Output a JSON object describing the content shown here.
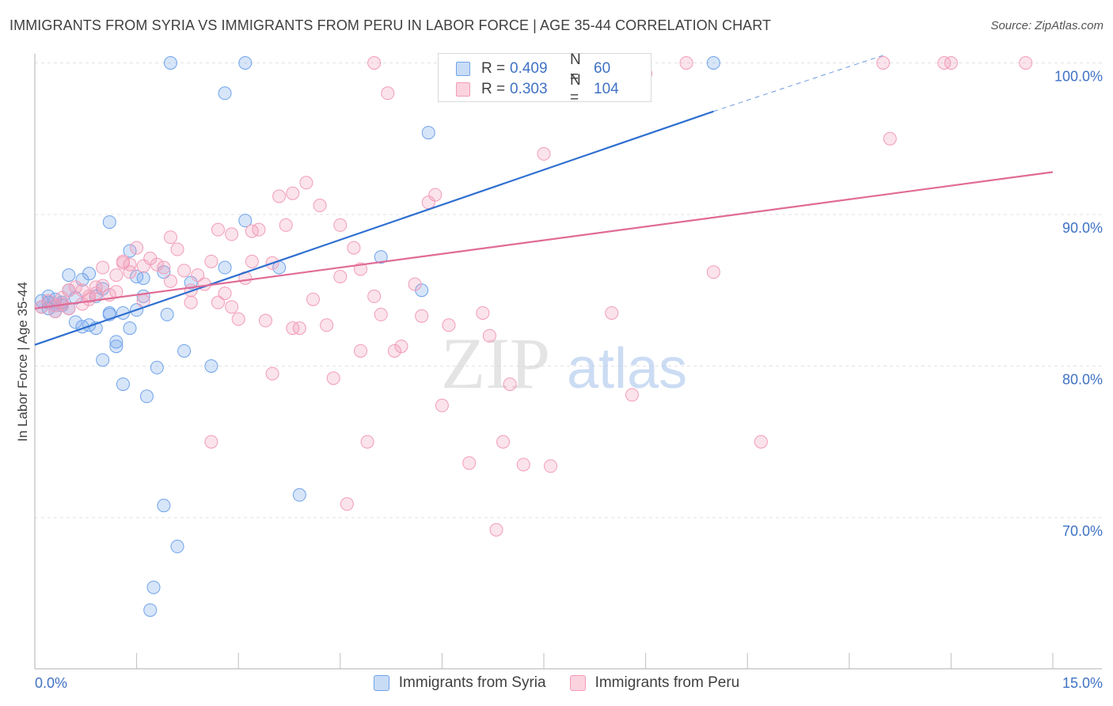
{
  "header": {
    "title": "IMMIGRANTS FROM SYRIA VS IMMIGRANTS FROM PERU IN LABOR FORCE | AGE 35-44 CORRELATION CHART",
    "source": "Source: ZipAtlas.com"
  },
  "watermark": {
    "part1": "ZIP",
    "part2": "atlas"
  },
  "legend": {
    "r_label": "R =",
    "n_label": "N =",
    "rows": [
      {
        "r": "0.409",
        "n": "60",
        "color": "#6fa3ea"
      },
      {
        "r": "0.303",
        "n": "104",
        "color": "#f29cb7"
      }
    ]
  },
  "chart_data": {
    "type": "scatter",
    "title": "IMMIGRANTS FROM SYRIA VS IMMIGRANTS FROM PERU IN LABOR FORCE | AGE 35-44 CORRELATION CHART",
    "xlabel": "",
    "ylabel": "In Labor Force | Age 35-44",
    "x_tick_labels": [
      "0.0%",
      "15.0%"
    ],
    "y_tick_labels": [
      "70.0%",
      "80.0%",
      "90.0%",
      "100.0%"
    ],
    "y_ticks": [
      70,
      80,
      90,
      100
    ],
    "xlim": [
      0,
      15
    ],
    "ylim": [
      60,
      101
    ],
    "grid": true,
    "legend_placement": "top-center",
    "series": [
      {
        "name": "Immigrants from Syria",
        "color": "#6fa3ea",
        "trend": {
          "x": [
            0,
            10
          ],
          "y": [
            81.4,
            96.8
          ],
          "dashed_to": [
            12.5,
            100.5
          ]
        },
        "points": [
          [
            0.1,
            84.3
          ],
          [
            0.1,
            83.9
          ],
          [
            0.2,
            84.6
          ],
          [
            0.2,
            84.2
          ],
          [
            0.3,
            83.6
          ],
          [
            0.3,
            84.0
          ],
          [
            0.4,
            84.2
          ],
          [
            0.4,
            84.0
          ],
          [
            0.5,
            86.0
          ],
          [
            0.5,
            85.0
          ],
          [
            0.5,
            83.8
          ],
          [
            0.6,
            82.9
          ],
          [
            0.6,
            84.5
          ],
          [
            0.7,
            85.7
          ],
          [
            0.7,
            82.6
          ],
          [
            0.8,
            86.1
          ],
          [
            0.8,
            82.7
          ],
          [
            0.9,
            84.6
          ],
          [
            0.9,
            82.5
          ],
          [
            1.0,
            85.1
          ],
          [
            1.0,
            80.4
          ],
          [
            1.1,
            83.4
          ],
          [
            1.1,
            83.5
          ],
          [
            1.2,
            81.3
          ],
          [
            1.2,
            81.6
          ],
          [
            1.3,
            83.5
          ],
          [
            1.3,
            78.8
          ],
          [
            1.4,
            82.5
          ],
          [
            1.4,
            87.6
          ],
          [
            1.5,
            85.9
          ],
          [
            1.5,
            83.7
          ],
          [
            1.6,
            85.8
          ],
          [
            1.6,
            84.6
          ],
          [
            1.65,
            78.0
          ],
          [
            1.8,
            79.9
          ],
          [
            1.9,
            70.8
          ],
          [
            1.9,
            86.2
          ],
          [
            1.95,
            83.4
          ],
          [
            2.0,
            100.0
          ],
          [
            2.1,
            68.1
          ],
          [
            1.75,
            65.4
          ],
          [
            1.7,
            63.9
          ],
          [
            2.2,
            81.0
          ],
          [
            2.3,
            85.5
          ],
          [
            2.6,
            80.0
          ],
          [
            2.8,
            86.5
          ],
          [
            2.8,
            98.0
          ],
          [
            3.1,
            89.6
          ],
          [
            3.1,
            100.0
          ],
          [
            3.6,
            86.5
          ],
          [
            3.9,
            71.5
          ],
          [
            5.1,
            87.2
          ],
          [
            5.7,
            85.0
          ],
          [
            5.8,
            95.4
          ],
          [
            7.0,
            100.0
          ],
          [
            8.5,
            100.0
          ],
          [
            10.0,
            100.0
          ],
          [
            1.1,
            89.5
          ],
          [
            0.2,
            83.8
          ],
          [
            0.3,
            84.4
          ]
        ]
      },
      {
        "name": "Immigrants from Peru",
        "color": "#f29cb7",
        "trend": {
          "x": [
            0,
            15
          ],
          "y": [
            83.8,
            92.8
          ]
        },
        "points": [
          [
            0.1,
            83.9
          ],
          [
            0.2,
            84.3
          ],
          [
            0.3,
            84.0
          ],
          [
            0.4,
            84.5
          ],
          [
            0.5,
            85.0
          ],
          [
            0.6,
            85.2
          ],
          [
            0.7,
            84.1
          ],
          [
            0.8,
            84.6
          ],
          [
            0.9,
            84.8
          ],
          [
            1.0,
            86.5
          ],
          [
            1.1,
            84.7
          ],
          [
            1.2,
            86.0
          ],
          [
            1.3,
            86.9
          ],
          [
            1.4,
            86.7
          ],
          [
            1.5,
            87.8
          ],
          [
            1.6,
            84.3
          ],
          [
            1.7,
            87.1
          ],
          [
            1.8,
            86.7
          ],
          [
            1.9,
            86.5
          ],
          [
            2.0,
            88.5
          ],
          [
            2.1,
            87.7
          ],
          [
            2.2,
            86.3
          ],
          [
            2.3,
            85.0
          ],
          [
            2.4,
            86.0
          ],
          [
            2.5,
            85.4
          ],
          [
            2.6,
            86.9
          ],
          [
            2.7,
            84.2
          ],
          [
            2.8,
            84.8
          ],
          [
            2.9,
            88.7
          ],
          [
            3.0,
            83.1
          ],
          [
            3.1,
            85.8
          ],
          [
            3.2,
            86.9
          ],
          [
            3.3,
            89.0
          ],
          [
            3.4,
            83.0
          ],
          [
            3.5,
            79.5
          ],
          [
            3.6,
            91.2
          ],
          [
            3.7,
            89.3
          ],
          [
            3.8,
            91.4
          ],
          [
            3.9,
            82.5
          ],
          [
            4.0,
            92.1
          ],
          [
            4.1,
            84.4
          ],
          [
            4.2,
            90.6
          ],
          [
            4.3,
            82.7
          ],
          [
            4.4,
            79.2
          ],
          [
            4.5,
            89.3
          ],
          [
            4.6,
            70.9
          ],
          [
            4.7,
            87.8
          ],
          [
            4.8,
            86.4
          ],
          [
            4.9,
            75.0
          ],
          [
            5.0,
            100.0
          ],
          [
            5.1,
            83.4
          ],
          [
            5.2,
            98.0
          ],
          [
            5.3,
            81.0
          ],
          [
            5.4,
            81.3
          ],
          [
            5.6,
            85.4
          ],
          [
            5.7,
            83.3
          ],
          [
            5.8,
            90.8
          ],
          [
            5.9,
            91.3
          ],
          [
            6.0,
            77.4
          ],
          [
            6.1,
            82.7
          ],
          [
            6.4,
            73.6
          ],
          [
            6.6,
            83.5
          ],
          [
            6.7,
            82.0
          ],
          [
            6.9,
            75.0
          ],
          [
            7.0,
            78.8
          ],
          [
            7.2,
            73.5
          ],
          [
            7.5,
            94.0
          ],
          [
            7.6,
            73.4
          ],
          [
            7.8,
            100.0
          ],
          [
            8.2,
            100.0
          ],
          [
            8.5,
            83.5
          ],
          [
            8.8,
            78.1
          ],
          [
            9.0,
            99.3
          ],
          [
            9.6,
            100.0
          ],
          [
            10.0,
            86.2
          ],
          [
            10.7,
            75.0
          ],
          [
            12.5,
            100.0
          ],
          [
            12.6,
            95.0
          ],
          [
            13.4,
            100.0
          ],
          [
            13.5,
            100.0
          ],
          [
            14.6,
            100.0
          ],
          [
            2.6,
            75.0
          ],
          [
            3.2,
            88.9
          ],
          [
            1.6,
            86.6
          ],
          [
            2.0,
            85.6
          ],
          [
            1.4,
            86.2
          ],
          [
            1.0,
            85.3
          ],
          [
            0.8,
            84.4
          ],
          [
            0.5,
            83.8
          ],
          [
            0.7,
            85.0
          ],
          [
            1.2,
            84.9
          ],
          [
            2.7,
            89.0
          ],
          [
            3.8,
            82.5
          ],
          [
            4.8,
            81.0
          ],
          [
            6.8,
            69.2
          ],
          [
            1.3,
            86.8
          ],
          [
            0.9,
            85.2
          ],
          [
            0.4,
            84.1
          ],
          [
            0.3,
            83.6
          ],
          [
            3.5,
            86.8
          ],
          [
            5.0,
            84.6
          ],
          [
            2.3,
            84.2
          ],
          [
            4.5,
            85.9
          ],
          [
            2.9,
            83.9
          ]
        ]
      }
    ]
  },
  "bottom_legend": [
    {
      "label": "Immigrants from Syria",
      "color": "#6fa3ea"
    },
    {
      "label": "Immigrants from Peru",
      "color": "#f29cb7"
    }
  ]
}
